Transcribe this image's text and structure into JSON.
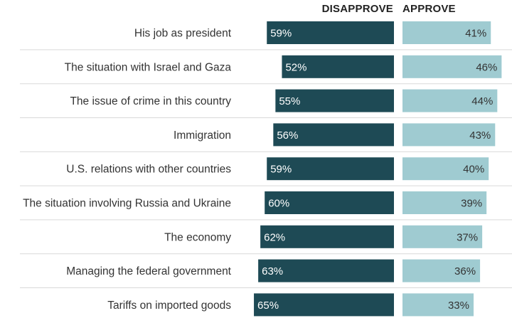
{
  "headers": {
    "disapprove": "DISAPPROVE",
    "approve": "APPROVE"
  },
  "colors": {
    "disapprove": "#1e4a55",
    "approve": "#9fcbd1",
    "divider": "#d9d9d9"
  },
  "chart_data": {
    "type": "bar",
    "orientation": "horizontal-diverging",
    "categories": [
      "His job as president",
      "The situation with Israel and Gaza",
      "The issue of crime in this country",
      "Immigration",
      "U.S. relations with other countries",
      "The situation involving Russia and Ukraine",
      "The economy",
      "Managing the federal government",
      "Tariffs on imported goods"
    ],
    "series": [
      {
        "name": "DISAPPROVE",
        "values": [
          59,
          52,
          55,
          56,
          59,
          60,
          62,
          63,
          65
        ],
        "labels": [
          "59%",
          "52%",
          "55%",
          "56%",
          "59%",
          "60%",
          "62%",
          "63%",
          "65%"
        ]
      },
      {
        "name": "APPROVE",
        "values": [
          41,
          46,
          44,
          43,
          40,
          39,
          37,
          36,
          33
        ],
        "labels": [
          "41%",
          "46%",
          "44%",
          "43%",
          "40%",
          "39%",
          "37%",
          "36%",
          "33%"
        ]
      }
    ],
    "unit": "%"
  }
}
